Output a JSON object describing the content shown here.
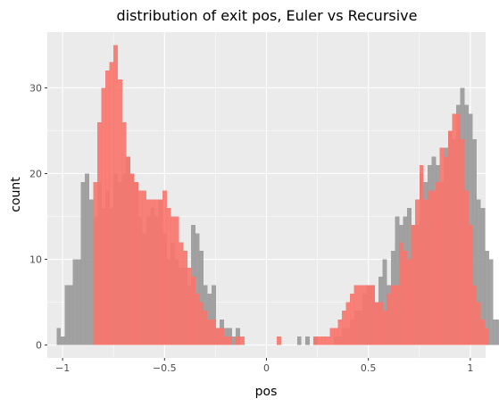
{
  "chart_data": {
    "type": "bar",
    "subtype": "overlaid-histogram",
    "title": "distribution of exit pos, Euler vs Recursive",
    "xlabel": "pos",
    "ylabel": "count",
    "xlim": [
      -1.075,
      1.075
    ],
    "ylim": [
      -1.5,
      36.5
    ],
    "x_ticks": [
      -1,
      -0.5,
      0,
      0.5,
      1
    ],
    "x_tick_labels": [
      "−1",
      "−0.5",
      "0",
      "0.5",
      "1"
    ],
    "y_ticks": [
      0,
      10,
      20,
      30
    ],
    "y_tick_labels": [
      "0",
      "10",
      "20",
      "30"
    ],
    "grid": true,
    "legend": "none",
    "background": "#ebebeb",
    "gridline_color": "#ffffff",
    "bin_width": 0.02,
    "bin_start": -1.03,
    "series": [
      {
        "color": "#999999",
        "opacity": 0.9,
        "counts": [
          2,
          1,
          7,
          7,
          10,
          10,
          19,
          20,
          17,
          15,
          19,
          16,
          18,
          16,
          20,
          19,
          20,
          22,
          20,
          19,
          15,
          13,
          15,
          16,
          15,
          17,
          13,
          10,
          12,
          10,
          9,
          9,
          7,
          14,
          13,
          11,
          7,
          6,
          7,
          2,
          3,
          2,
          2,
          1,
          2,
          0,
          0,
          0,
          0,
          0,
          0,
          0,
          0,
          0,
          0,
          0,
          0,
          0,
          0,
          1,
          0,
          1,
          0,
          1,
          0,
          0,
          0,
          0,
          1,
          1,
          2,
          2,
          3,
          4,
          4,
          6,
          7,
          7,
          5,
          8,
          10,
          7,
          11,
          15,
          14,
          15,
          16,
          14,
          14,
          20,
          19,
          21,
          22,
          21,
          19,
          23,
          25,
          24,
          28,
          30,
          28,
          27,
          24,
          17,
          16,
          11,
          10,
          3,
          3
        ]
      },
      {
        "color": "#f8766d",
        "opacity": 0.9,
        "counts": [
          0,
          0,
          0,
          0,
          0,
          0,
          0,
          0,
          0,
          19,
          26,
          30,
          32,
          33,
          35,
          31,
          26,
          22,
          20,
          19,
          18,
          18,
          17,
          17,
          17,
          17,
          18,
          16,
          15,
          15,
          12,
          11,
          9,
          8,
          6,
          5,
          4,
          3,
          3,
          2,
          2,
          1,
          1,
          0,
          1,
          1,
          0,
          0,
          0,
          0,
          0,
          0,
          0,
          0,
          1,
          0,
          0,
          0,
          0,
          0,
          0,
          0,
          0,
          1,
          1,
          1,
          1,
          2,
          2,
          3,
          4,
          5,
          6,
          7,
          7,
          7,
          7,
          7,
          5,
          5,
          4,
          6,
          7,
          7,
          12,
          11,
          10,
          14,
          17,
          21,
          17,
          18,
          18,
          19,
          23,
          22,
          25,
          27,
          27,
          24,
          18,
          14,
          7,
          5,
          3,
          2,
          0,
          0,
          0
        ]
      }
    ]
  }
}
